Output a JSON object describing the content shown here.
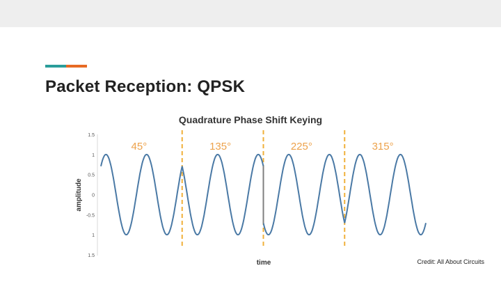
{
  "slide": {
    "title": "Packet Reception: QPSK",
    "credit": "Credit: All About Circuits"
  },
  "colors": {
    "top_bar": "#eeeeee",
    "accent_teal": "#2a9d9a",
    "accent_orange": "#e76a24",
    "wave": "#4a79a5",
    "phase_jump": "#7f7f7f",
    "divider": "#f0b03a",
    "phase_label": "#eda24b"
  },
  "chart_data": {
    "type": "line",
    "title": "Quadrature Phase Shift Keying",
    "xlabel": "time",
    "ylabel": "amplitude",
    "ylim": [
      -1.5,
      1.5
    ],
    "yticks": [
      "1.5",
      "1",
      "0.5",
      "0",
      "-0.5",
      "1",
      "1.5"
    ],
    "symbols": [
      {
        "label": "45°",
        "phase_deg": 45,
        "cycles": 2
      },
      {
        "label": "135°",
        "phase_deg": 135,
        "cycles": 2
      },
      {
        "label": "225°",
        "phase_deg": 225,
        "cycles": 2
      },
      {
        "label": "315°",
        "phase_deg": 315,
        "cycles": 2
      }
    ],
    "boundary_style": "dashed vertical lines between symbols",
    "grid": false
  }
}
